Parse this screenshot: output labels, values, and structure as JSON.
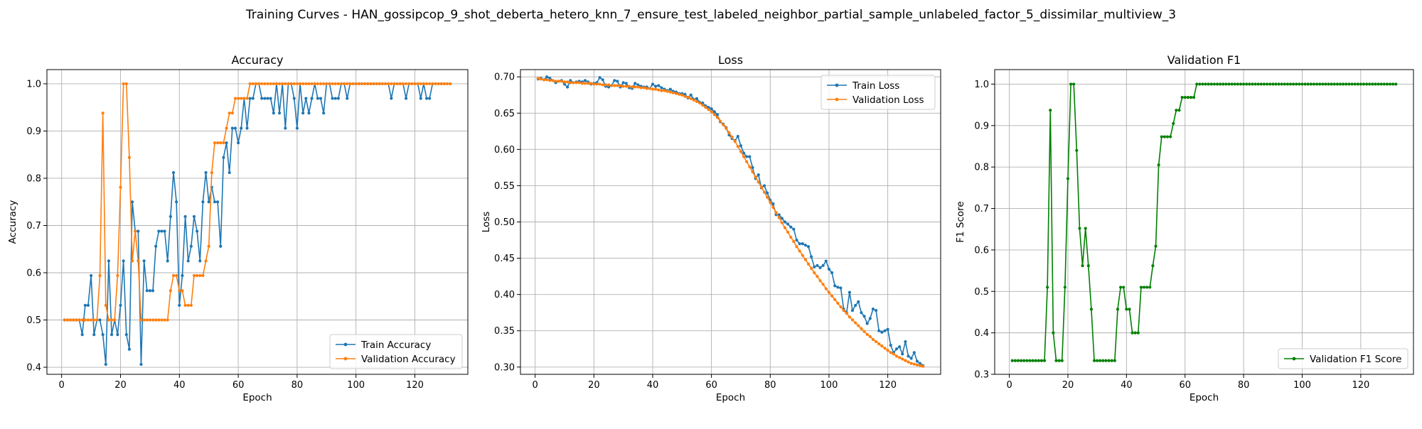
{
  "figure": {
    "suptitle": "Training Curves - HAN_gossipcop_9_shot_deberta_hetero_knn_7_ensure_test_labeled_neighbor_partial_sample_unlabeled_factor_5_dissimilar_multiview_3"
  },
  "colors": {
    "blue": "#1f77b4",
    "orange": "#ff7f0e",
    "green": "#008000",
    "grid": "#b0b0b0"
  },
  "chart_data": [
    {
      "type": "line",
      "title": "Accuracy",
      "xlabel": "Epoch",
      "ylabel": "Accuracy",
      "xlim": [
        -5,
        138
      ],
      "ylim": [
        0.385,
        1.03
      ],
      "xticks": [
        0,
        20,
        40,
        60,
        80,
        100,
        120
      ],
      "yticks": [
        0.4,
        0.5,
        0.6,
        0.7,
        0.8,
        0.9,
        1.0
      ],
      "ytick_labels": [
        "0.4",
        "0.5",
        "0.6",
        "0.7",
        "0.8",
        "0.9",
        "1.0"
      ],
      "grid": true,
      "legend_position": "lower-right",
      "series": [
        {
          "name": "Train Accuracy",
          "color": "#1f77b4",
          "x_start": 1,
          "values": [
            0.5,
            0.5,
            0.5,
            0.5,
            0.5,
            0.5,
            0.469,
            0.531,
            0.531,
            0.594,
            0.469,
            0.5,
            0.5,
            0.469,
            0.406,
            0.625,
            0.469,
            0.5,
            0.469,
            0.531,
            0.625,
            0.469,
            0.438,
            0.75,
            0.688,
            0.688,
            0.406,
            0.625,
            0.562,
            0.562,
            0.562,
            0.656,
            0.688,
            0.688,
            0.688,
            0.625,
            0.719,
            0.812,
            0.75,
            0.531,
            0.594,
            0.719,
            0.625,
            0.656,
            0.719,
            0.688,
            0.625,
            0.75,
            0.812,
            0.75,
            0.781,
            0.75,
            0.75,
            0.656,
            0.844,
            0.875,
            0.812,
            0.906,
            0.906,
            0.875,
            0.906,
            0.969,
            0.906,
            0.969,
            0.969,
            1.0,
            1.0,
            0.969,
            0.969,
            0.969,
            0.969,
            0.938,
            1.0,
            0.938,
            1.0,
            0.906,
            1.0,
            1.0,
            0.969,
            0.906,
            1.0,
            0.938,
            0.969,
            0.938,
            0.969,
            1.0,
            0.969,
            0.969,
            0.938,
            1.0,
            1.0,
            0.969,
            0.969,
            0.969,
            1.0,
            1.0,
            0.969,
            1.0,
            1.0,
            1.0,
            1.0,
            1.0,
            1.0,
            1.0,
            1.0,
            1.0,
            1.0,
            1.0,
            1.0,
            1.0,
            1.0,
            0.969,
            1.0,
            1.0,
            1.0,
            1.0,
            0.969,
            1.0,
            1.0,
            1.0,
            1.0,
            0.969,
            1.0,
            0.969,
            0.969,
            1.0,
            1.0,
            1.0,
            1.0,
            1.0,
            1.0,
            1.0
          ]
        },
        {
          "name": "Validation Accuracy",
          "color": "#ff7f0e",
          "x_start": 1,
          "values": [
            0.5,
            0.5,
            0.5,
            0.5,
            0.5,
            0.5,
            0.5,
            0.5,
            0.5,
            0.5,
            0.5,
            0.5,
            0.594,
            0.938,
            0.531,
            0.5,
            0.5,
            0.5,
            0.594,
            0.781,
            1.0,
            1.0,
            0.844,
            0.625,
            0.688,
            0.625,
            0.5,
            0.5,
            0.5,
            0.5,
            0.5,
            0.5,
            0.5,
            0.5,
            0.5,
            0.5,
            0.562,
            0.594,
            0.594,
            0.562,
            0.562,
            0.531,
            0.531,
            0.531,
            0.594,
            0.594,
            0.594,
            0.594,
            0.625,
            0.656,
            0.812,
            0.875,
            0.875,
            0.875,
            0.875,
            0.906,
            0.938,
            0.938,
            0.969,
            0.969,
            0.969,
            0.969,
            0.969,
            1.0,
            1.0,
            1.0,
            1.0,
            1.0,
            1.0,
            1.0,
            1.0,
            1.0,
            1.0,
            1.0,
            1.0,
            1.0,
            1.0,
            1.0,
            1.0,
            1.0,
            1.0,
            1.0,
            1.0,
            1.0,
            1.0,
            1.0,
            1.0,
            1.0,
            1.0,
            1.0,
            1.0,
            1.0,
            1.0,
            1.0,
            1.0,
            1.0,
            1.0,
            1.0,
            1.0,
            1.0,
            1.0,
            1.0,
            1.0,
            1.0,
            1.0,
            1.0,
            1.0,
            1.0,
            1.0,
            1.0,
            1.0,
            1.0,
            1.0,
            1.0,
            1.0,
            1.0,
            1.0,
            1.0,
            1.0,
            1.0,
            1.0,
            1.0,
            1.0,
            1.0,
            1.0,
            1.0,
            1.0,
            1.0,
            1.0,
            1.0,
            1.0,
            1.0
          ]
        }
      ]
    },
    {
      "type": "line",
      "title": "Loss",
      "xlabel": "Epoch",
      "ylabel": "Loss",
      "xlim": [
        -5,
        138
      ],
      "ylim": [
        0.29,
        0.71
      ],
      "xticks": [
        0,
        20,
        40,
        60,
        80,
        100,
        120
      ],
      "yticks": [
        0.3,
        0.35,
        0.4,
        0.45,
        0.5,
        0.55,
        0.6,
        0.65,
        0.7
      ],
      "ytick_labels": [
        "0.30",
        "0.35",
        "0.40",
        "0.45",
        "0.50",
        "0.55",
        "0.60",
        "0.65",
        "0.70"
      ],
      "grid": true,
      "legend_position": "upper-right",
      "series": [
        {
          "name": "Train Loss",
          "color": "#1f77b4",
          "x_start": 1,
          "values": [
            0.697,
            0.698,
            0.696,
            0.7,
            0.698,
            0.695,
            0.692,
            0.694,
            0.695,
            0.69,
            0.686,
            0.695,
            0.692,
            0.693,
            0.694,
            0.693,
            0.695,
            0.693,
            0.69,
            0.691,
            0.692,
            0.699,
            0.696,
            0.687,
            0.686,
            0.688,
            0.695,
            0.694,
            0.686,
            0.692,
            0.691,
            0.685,
            0.684,
            0.691,
            0.689,
            0.687,
            0.686,
            0.686,
            0.684,
            0.69,
            0.687,
            0.688,
            0.685,
            0.683,
            0.681,
            0.683,
            0.68,
            0.679,
            0.677,
            0.677,
            0.676,
            0.671,
            0.675,
            0.669,
            0.67,
            0.665,
            0.664,
            0.66,
            0.658,
            0.656,
            0.652,
            0.648,
            0.638,
            0.635,
            0.63,
            0.62,
            0.615,
            0.612,
            0.618,
            0.605,
            0.595,
            0.59,
            0.59,
            0.575,
            0.56,
            0.565,
            0.547,
            0.55,
            0.54,
            0.53,
            0.525,
            0.51,
            0.51,
            0.505,
            0.5,
            0.497,
            0.493,
            0.49,
            0.475,
            0.47,
            0.47,
            0.468,
            0.466,
            0.452,
            0.438,
            0.44,
            0.437,
            0.44,
            0.446,
            0.435,
            0.43,
            0.412,
            0.41,
            0.409,
            0.38,
            0.375,
            0.403,
            0.378,
            0.385,
            0.39,
            0.375,
            0.37,
            0.36,
            0.367,
            0.38,
            0.378,
            0.35,
            0.348,
            0.35,
            0.352,
            0.33,
            0.32,
            0.325,
            0.328,
            0.318,
            0.335,
            0.315,
            0.312,
            0.32,
            0.308,
            0.305,
            0.302
          ]
        },
        {
          "name": "Validation Loss",
          "color": "#ff7f0e",
          "x_start": 1,
          "values": [
            0.698,
            0.697,
            0.696,
            0.696,
            0.695,
            0.695,
            0.694,
            0.694,
            0.694,
            0.693,
            0.693,
            0.692,
            0.692,
            0.692,
            0.692,
            0.691,
            0.691,
            0.691,
            0.691,
            0.69,
            0.69,
            0.69,
            0.689,
            0.689,
            0.689,
            0.688,
            0.688,
            0.688,
            0.688,
            0.687,
            0.687,
            0.687,
            0.686,
            0.686,
            0.686,
            0.685,
            0.685,
            0.684,
            0.684,
            0.683,
            0.683,
            0.682,
            0.681,
            0.681,
            0.68,
            0.679,
            0.678,
            0.677,
            0.676,
            0.675,
            0.673,
            0.672,
            0.67,
            0.668,
            0.666,
            0.664,
            0.661,
            0.658,
            0.655,
            0.652,
            0.648,
            0.644,
            0.639,
            0.634,
            0.629,
            0.623,
            0.617,
            0.611,
            0.604,
            0.597,
            0.59,
            0.583,
            0.576,
            0.569,
            0.562,
            0.555,
            0.548,
            0.541,
            0.534,
            0.527,
            0.52,
            0.513,
            0.506,
            0.499,
            0.492,
            0.486,
            0.479,
            0.473,
            0.466,
            0.46,
            0.454,
            0.448,
            0.442,
            0.436,
            0.43,
            0.425,
            0.419,
            0.414,
            0.408,
            0.403,
            0.398,
            0.393,
            0.388,
            0.383,
            0.378,
            0.374,
            0.369,
            0.365,
            0.361,
            0.357,
            0.353,
            0.349,
            0.345,
            0.342,
            0.338,
            0.335,
            0.332,
            0.329,
            0.326,
            0.323,
            0.32,
            0.318,
            0.315,
            0.313,
            0.311,
            0.309,
            0.307,
            0.305,
            0.304,
            0.303,
            0.302,
            0.301
          ]
        }
      ]
    },
    {
      "type": "line",
      "title": "Validation F1",
      "xlabel": "Epoch",
      "ylabel": "F1 Score",
      "xlim": [
        -5,
        138
      ],
      "ylim": [
        0.3,
        1.035
      ],
      "xticks": [
        0,
        20,
        40,
        60,
        80,
        100,
        120
      ],
      "yticks": [
        0.3,
        0.4,
        0.5,
        0.6,
        0.7,
        0.8,
        0.9,
        1.0
      ],
      "ytick_labels": [
        "0.3",
        "0.4",
        "0.5",
        "0.6",
        "0.7",
        "0.8",
        "0.9",
        "1.0"
      ],
      "grid": true,
      "legend_position": "lower-right",
      "series": [
        {
          "name": "Validation F1 Score",
          "color": "#008000",
          "x_start": 1,
          "values": [
            0.333,
            0.333,
            0.333,
            0.333,
            0.333,
            0.333,
            0.333,
            0.333,
            0.333,
            0.333,
            0.333,
            0.333,
            0.51,
            0.937,
            0.4,
            0.333,
            0.333,
            0.333,
            0.51,
            0.772,
            1.0,
            1.0,
            0.84,
            0.652,
            0.562,
            0.652,
            0.562,
            0.457,
            0.333,
            0.333,
            0.333,
            0.333,
            0.333,
            0.333,
            0.333,
            0.333,
            0.457,
            0.51,
            0.51,
            0.457,
            0.457,
            0.4,
            0.4,
            0.4,
            0.51,
            0.51,
            0.51,
            0.51,
            0.562,
            0.609,
            0.805,
            0.873,
            0.873,
            0.873,
            0.873,
            0.905,
            0.937,
            0.937,
            0.968,
            0.968,
            0.968,
            0.968,
            0.968,
            1.0,
            1.0,
            1.0,
            1.0,
            1.0,
            1.0,
            1.0,
            1.0,
            1.0,
            1.0,
            1.0,
            1.0,
            1.0,
            1.0,
            1.0,
            1.0,
            1.0,
            1.0,
            1.0,
            1.0,
            1.0,
            1.0,
            1.0,
            1.0,
            1.0,
            1.0,
            1.0,
            1.0,
            1.0,
            1.0,
            1.0,
            1.0,
            1.0,
            1.0,
            1.0,
            1.0,
            1.0,
            1.0,
            1.0,
            1.0,
            1.0,
            1.0,
            1.0,
            1.0,
            1.0,
            1.0,
            1.0,
            1.0,
            1.0,
            1.0,
            1.0,
            1.0,
            1.0,
            1.0,
            1.0,
            1.0,
            1.0,
            1.0,
            1.0,
            1.0,
            1.0,
            1.0,
            1.0,
            1.0,
            1.0,
            1.0,
            1.0,
            1.0,
            1.0
          ]
        }
      ]
    }
  ]
}
